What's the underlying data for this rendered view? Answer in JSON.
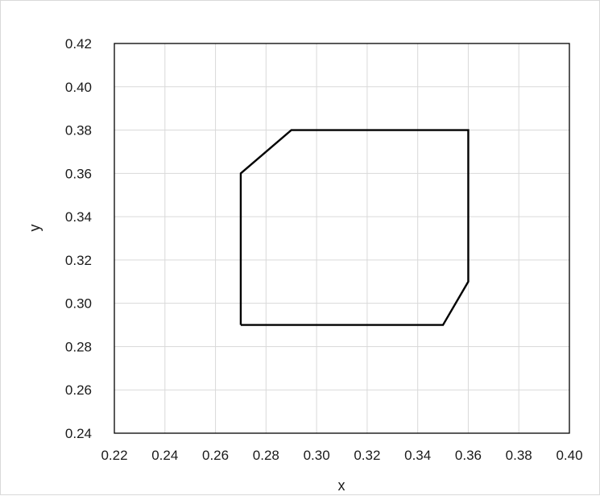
{
  "chart_data": {
    "type": "line",
    "title": "",
    "xlabel": "x",
    "ylabel": "y",
    "xlim": [
      0.22,
      0.4
    ],
    "ylim": [
      0.24,
      0.42
    ],
    "grid": true,
    "x_ticks": [
      "0.22",
      "0.24",
      "0.26",
      "0.28",
      "0.30",
      "0.32",
      "0.34",
      "0.36",
      "0.38",
      "0.40"
    ],
    "y_ticks": [
      "0.24",
      "0.26",
      "0.28",
      "0.30",
      "0.32",
      "0.34",
      "0.36",
      "0.38",
      "0.40",
      "0.42"
    ],
    "series": [
      {
        "points": [
          {
            "x": 0.27,
            "y": 0.29
          },
          {
            "x": 0.27,
            "y": 0.36
          },
          {
            "x": 0.29,
            "y": 0.38
          },
          {
            "x": 0.36,
            "y": 0.38
          },
          {
            "x": 0.36,
            "y": 0.31
          },
          {
            "x": 0.35,
            "y": 0.29
          },
          {
            "x": 0.27,
            "y": 0.29
          }
        ]
      }
    ],
    "colors": {
      "line": "#000000",
      "grid": "#d9d9d9",
      "axis": "#000000",
      "text": "#1a1a1a"
    }
  }
}
